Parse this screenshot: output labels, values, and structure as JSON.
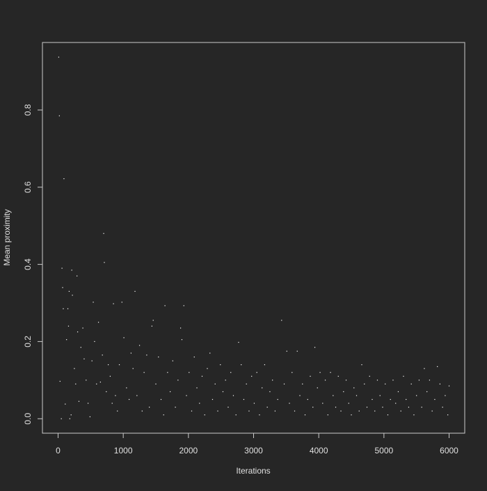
{
  "chart_data": {
    "type": "scatter",
    "x_label": "Iterations",
    "y_label": "Mean proximity",
    "xlim": [
      -240,
      6240
    ],
    "ylim": [
      -0.0375,
      0.975
    ],
    "xticks": [
      0,
      1000,
      2000,
      3000,
      4000,
      5000,
      6000
    ],
    "yticks": [
      {
        "value": 0,
        "label": "0.0"
      },
      0.2,
      0.4,
      0.6,
      0.8
    ],
    "color": "#ffffff",
    "x": [
      10,
      20,
      30,
      50,
      60,
      70,
      80,
      90,
      110,
      130,
      150,
      160,
      170,
      180,
      200,
      210,
      220,
      250,
      270,
      290,
      300,
      320,
      350,
      380,
      400,
      430,
      460,
      490,
      520,
      540,
      560,
      590,
      620,
      650,
      680,
      700,
      710,
      740,
      770,
      800,
      830,
      850,
      880,
      910,
      940,
      980,
      1010,
      1050,
      1090,
      1120,
      1150,
      1180,
      1210,
      1250,
      1290,
      1320,
      1360,
      1400,
      1440,
      1460,
      1500,
      1540,
      1580,
      1620,
      1640,
      1680,
      1720,
      1760,
      1800,
      1840,
      1880,
      1900,
      1930,
      1970,
      2010,
      2050,
      2090,
      2130,
      2170,
      2210,
      2250,
      2290,
      2330,
      2370,
      2410,
      2450,
      2490,
      2530,
      2570,
      2610,
      2650,
      2690,
      2730,
      2770,
      2810,
      2850,
      2890,
      2930,
      2970,
      3010,
      3050,
      3090,
      3130,
      3170,
      3210,
      3250,
      3290,
      3330,
      3370,
      3430,
      3470,
      3510,
      3550,
      3590,
      3630,
      3670,
      3710,
      3750,
      3790,
      3830,
      3870,
      3910,
      3940,
      3980,
      4020,
      4060,
      4100,
      4140,
      4180,
      4220,
      4260,
      4300,
      4340,
      4380,
      4420,
      4460,
      4500,
      4540,
      4580,
      4620,
      4660,
      4700,
      4740,
      4780,
      4820,
      4860,
      4900,
      4940,
      4980,
      5020,
      5060,
      5100,
      5140,
      5180,
      5220,
      5260,
      5300,
      5340,
      5380,
      5420,
      5460,
      5500,
      5540,
      5580,
      5620,
      5660,
      5700,
      5740,
      5780,
      5820,
      5860,
      5900,
      5940,
      5980,
      6000
    ],
    "values": [
      0.937,
      0.785,
      0.097,
      0.0,
      0.39,
      0.34,
      0.285,
      0.622,
      0.038,
      0.205,
      0.285,
      0.24,
      0.33,
      0.0,
      0.01,
      0.385,
      0.32,
      0.13,
      0.09,
      0.37,
      0.225,
      0.045,
      0.185,
      0.235,
      0.155,
      0.1,
      0.04,
      0.005,
      0.15,
      0.302,
      0.2,
      0.09,
      0.25,
      0.095,
      0.165,
      0.48,
      0.405,
      0.07,
      0.14,
      0.11,
      0.04,
      0.298,
      0.06,
      0.02,
      0.14,
      0.302,
      0.21,
      0.08,
      0.05,
      0.17,
      0.13,
      0.33,
      0.06,
      0.19,
      0.02,
      0.12,
      0.165,
      0.03,
      0.24,
      0.255,
      0.09,
      0.16,
      0.05,
      0.01,
      0.293,
      0.12,
      0.07,
      0.15,
      0.03,
      0.1,
      0.235,
      0.205,
      0.293,
      0.06,
      0.12,
      0.02,
      0.16,
      0.08,
      0.04,
      0.11,
      0.01,
      0.13,
      0.17,
      0.05,
      0.09,
      0.02,
      0.14,
      0.07,
      0.1,
      0.03,
      0.12,
      0.06,
      0.01,
      0.198,
      0.14,
      0.05,
      0.09,
      0.02,
      0.11,
      0.04,
      0.12,
      0.01,
      0.08,
      0.14,
      0.03,
      0.07,
      0.1,
      0.02,
      0.05,
      0.255,
      0.09,
      0.175,
      0.04,
      0.12,
      0.02,
      0.175,
      0.06,
      0.09,
      0.01,
      0.05,
      0.11,
      0.03,
      0.185,
      0.08,
      0.12,
      0.04,
      0.1,
      0.01,
      0.12,
      0.06,
      0.03,
      0.11,
      0.02,
      0.07,
      0.1,
      0.04,
      0.01,
      0.08,
      0.06,
      0.02,
      0.14,
      0.09,
      0.03,
      0.11,
      0.05,
      0.02,
      0.1,
      0.06,
      0.03,
      0.09,
      0.01,
      0.05,
      0.1,
      0.04,
      0.07,
      0.02,
      0.11,
      0.05,
      0.03,
      0.09,
      0.01,
      0.06,
      0.1,
      0.03,
      0.13,
      0.07,
      0.1,
      0.02,
      0.05,
      0.135,
      0.09,
      0.03,
      0.06,
      0.01,
      0.085
    ]
  }
}
